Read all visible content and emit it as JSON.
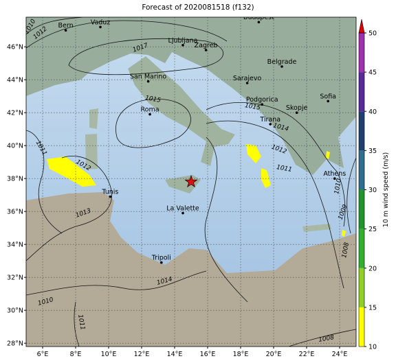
{
  "chart_data": {
    "type": "map",
    "title": "Forecast of 2020081518 (f132)",
    "xlim": [
      5,
      25
    ],
    "ylim": [
      27.8,
      47.8
    ],
    "xticks": [
      {
        "value": 6,
        "label": "6°E"
      },
      {
        "value": 8,
        "label": "8°E"
      },
      {
        "value": 10,
        "label": "10°E"
      },
      {
        "value": 12,
        "label": "12°E"
      },
      {
        "value": 14,
        "label": "14°E"
      },
      {
        "value": 16,
        "label": "16°E"
      },
      {
        "value": 18,
        "label": "18°E"
      },
      {
        "value": 20,
        "label": "20°E"
      },
      {
        "value": 22,
        "label": "22°E"
      },
      {
        "value": 24,
        "label": "24°E"
      }
    ],
    "yticks": [
      {
        "value": 28,
        "label": "28°N"
      },
      {
        "value": 30,
        "label": "30°N"
      },
      {
        "value": 32,
        "label": "32°N"
      },
      {
        "value": 34,
        "label": "34°N"
      },
      {
        "value": 36,
        "label": "36°N"
      },
      {
        "value": 38,
        "label": "38°N"
      },
      {
        "value": 40,
        "label": "40°N"
      },
      {
        "value": 42,
        "label": "42°N"
      },
      {
        "value": 44,
        "label": "44°N"
      },
      {
        "value": 46,
        "label": "46°N"
      }
    ],
    "grid": true,
    "cities": [
      {
        "name": "Bern",
        "lon": 7.4,
        "lat": 47.0
      },
      {
        "name": "Vaduz",
        "lon": 9.5,
        "lat": 47.2
      },
      {
        "name": "Budapest",
        "lon": 19.1,
        "lat": 47.5
      },
      {
        "name": "Ljubljana",
        "lon": 14.5,
        "lat": 46.1
      },
      {
        "name": "Zagreb",
        "lon": 15.9,
        "lat": 45.8
      },
      {
        "name": "San Marino",
        "lon": 12.4,
        "lat": 43.9
      },
      {
        "name": "Belgrade",
        "lon": 20.5,
        "lat": 44.8
      },
      {
        "name": "Sarajevo",
        "lon": 18.4,
        "lat": 43.8
      },
      {
        "name": "Roma",
        "lon": 12.5,
        "lat": 41.9
      },
      {
        "name": "Podgorica",
        "lon": 19.3,
        "lat": 42.5
      },
      {
        "name": "Sofia",
        "lon": 23.3,
        "lat": 42.7
      },
      {
        "name": "Skopje",
        "lon": 21.4,
        "lat": 42.0
      },
      {
        "name": "Tirana",
        "lon": 19.8,
        "lat": 41.3
      },
      {
        "name": "Athens",
        "lon": 23.7,
        "lat": 38.0
      },
      {
        "name": "Tunis",
        "lon": 10.1,
        "lat": 36.9
      },
      {
        "name": "La Valette",
        "lon": 14.5,
        "lat": 35.9
      },
      {
        "name": "Tripoli",
        "lon": 13.2,
        "lat": 32.9
      }
    ],
    "marker": {
      "lon": 15.0,
      "lat": 37.8,
      "color": "#e01010"
    },
    "isobar_labels": [
      1010,
      1012,
      1017,
      1015,
      1015,
      1014,
      1012,
      1011,
      1012,
      1011,
      1013,
      1014,
      1010,
      1011,
      1009,
      1008,
      1008,
      1010
    ],
    "colorbar": {
      "label": "10 m wind speed (m/s)",
      "lim": [
        10,
        50
      ],
      "ticks": [
        10,
        15,
        20,
        25,
        30,
        35,
        40,
        45,
        50
      ],
      "colors": [
        "#ffff00",
        "#8fd020",
        "#30b030",
        "#1e9630",
        "#2f6e8f",
        "#1f3f6f",
        "#5a2a9a",
        "#a030b0"
      ],
      "extend_color": "#e00000"
    }
  }
}
